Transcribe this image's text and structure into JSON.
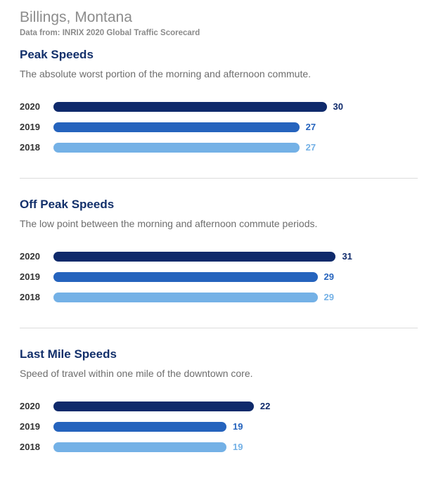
{
  "header": {
    "title": "Billings, Montana",
    "source": "Data from: INRIX 2020 Global Traffic Scorecard"
  },
  "colors": {
    "2020": "#0f2a6b",
    "2019": "#2563bd",
    "2018": "#74b1e6",
    "title": "#13306b"
  },
  "chart_data": [
    {
      "type": "bar",
      "orientation": "horizontal",
      "title": "Peak Speeds",
      "subtitle": "The absolute worst portion of the morning and afternoon commute.",
      "categories": [
        "2020",
        "2019",
        "2018"
      ],
      "values": [
        30,
        27,
        27
      ]
    },
    {
      "type": "bar",
      "orientation": "horizontal",
      "title": "Off Peak Speeds",
      "subtitle": "The low point between the morning and afternoon commute periods.",
      "categories": [
        "2020",
        "2019",
        "2018"
      ],
      "values": [
        31,
        29,
        29
      ]
    },
    {
      "type": "bar",
      "orientation": "horizontal",
      "title": "Last Mile Speeds",
      "subtitle": "Speed of travel within one mile of the downtown core.",
      "categories": [
        "2020",
        "2019",
        "2018"
      ],
      "values": [
        22,
        19,
        19
      ]
    }
  ]
}
